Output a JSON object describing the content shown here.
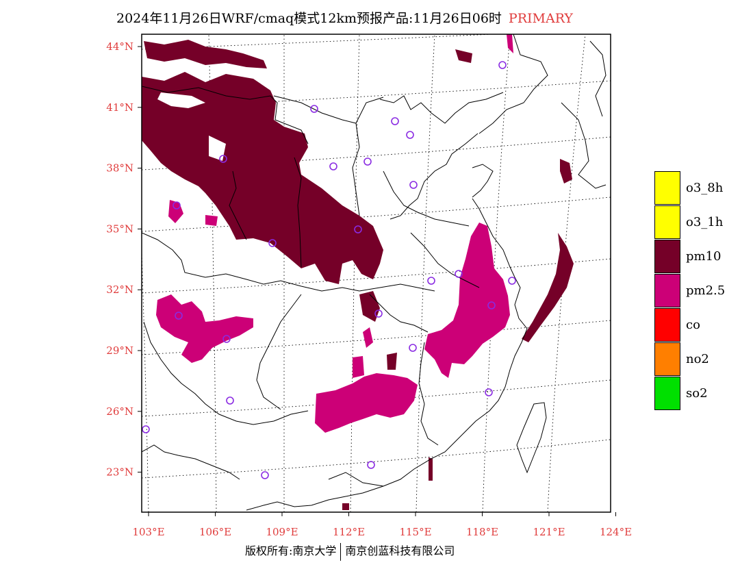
{
  "title": {
    "main": "2024年11月26日WRF/cmaq模式12km预报产品:11月26日06时",
    "tag": "PRIMARY"
  },
  "footer": {
    "left": "版权所有:南京大学",
    "right": "南京创蓝科技有限公司"
  },
  "map": {
    "lon_range": [
      102.5,
      124
    ],
    "lat_range": [
      21.8,
      44.4
    ],
    "lat_ticks": [
      {
        "value": 44,
        "label": "44°N"
      },
      {
        "value": 41,
        "label": "41°N"
      },
      {
        "value": 38,
        "label": "38°N"
      },
      {
        "value": 35,
        "label": "35°N"
      },
      {
        "value": 32,
        "label": "32°N"
      },
      {
        "value": 29,
        "label": "29°N"
      },
      {
        "value": 26,
        "label": "26°N"
      },
      {
        "value": 23,
        "label": "23°N"
      }
    ],
    "lon_ticks": [
      {
        "value": 103,
        "label": "103°E"
      },
      {
        "value": 106,
        "label": "106°E"
      },
      {
        "value": 109,
        "label": "109°E"
      },
      {
        "value": 112,
        "label": "112°E"
      },
      {
        "value": 115,
        "label": "115°E"
      },
      {
        "value": 118,
        "label": "118°E"
      },
      {
        "value": 121,
        "label": "121°E"
      },
      {
        "value": 124,
        "label": "124°E"
      }
    ],
    "colors": {
      "pm10": "#750028",
      "pm25": "#cc0077",
      "station": "#8a2be2",
      "tick_label": "#e03c3c"
    }
  },
  "legend": [
    {
      "label": "o3_8h",
      "color": "#ffff00"
    },
    {
      "label": "o3_1h",
      "color": "#ffff00"
    },
    {
      "label": "pm10",
      "color": "#750028"
    },
    {
      "label": "pm2.5",
      "color": "#cc0077"
    },
    {
      "label": "co",
      "color": "#ff0000"
    },
    {
      "label": "no2",
      "color": "#ff7f00"
    },
    {
      "label": "so2",
      "color": "#00e000"
    }
  ]
}
